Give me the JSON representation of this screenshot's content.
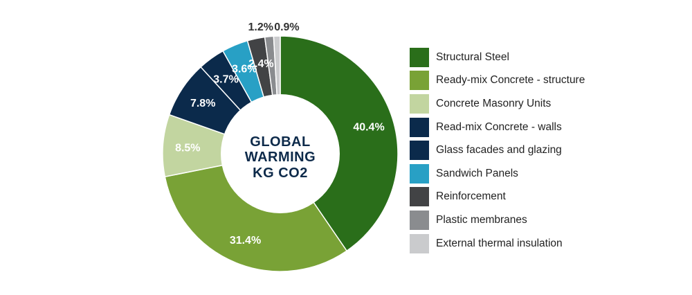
{
  "chart_data": {
    "type": "pie",
    "donut": true,
    "center_title": [
      "GLOBAL",
      "WARMING",
      "KG CO2"
    ],
    "slices": [
      {
        "name": "Structural Steel",
        "value": 40.4,
        "label": "40.4%",
        "color": "#2a6e1a",
        "label_color": "#ffffff"
      },
      {
        "name": "Ready-mix Concrete - structure",
        "value": 31.4,
        "label": "31.4%",
        "color": "#79a236",
        "label_color": "#ffffff"
      },
      {
        "name": "Concrete Masonry Units",
        "value": 8.5,
        "label": "8.5%",
        "color": "#c2d5a0",
        "label_color": "#ffffff"
      },
      {
        "name": "Read-mix Concrete - walls",
        "value": 7.8,
        "label": "7.8%",
        "color": "#0b2a4b",
        "label_color": "#ffffff"
      },
      {
        "name": "Glass facades and glazing",
        "value": 3.7,
        "label": "3.7%",
        "color": "#0b2a4b",
        "label_color": "#ffffff"
      },
      {
        "name": "Sandwich Panels",
        "value": 3.6,
        "label": "3.6%",
        "color": "#28a0c5",
        "label_color": "#ffffff"
      },
      {
        "name": "Reinforcement",
        "value": 2.4,
        "label": "2.4%",
        "color": "#424345",
        "label_color": "#ffffff"
      },
      {
        "name": "Plastic membranes",
        "value": 1.2,
        "label": "1.2%",
        "color": "#8a8c8f",
        "label_color": "#333333"
      },
      {
        "name": "External thermal insulation",
        "value": 0.9,
        "label": "0.9%",
        "color": "#cacbcd",
        "label_color": "#333333"
      }
    ],
    "legend_position": "right"
  }
}
